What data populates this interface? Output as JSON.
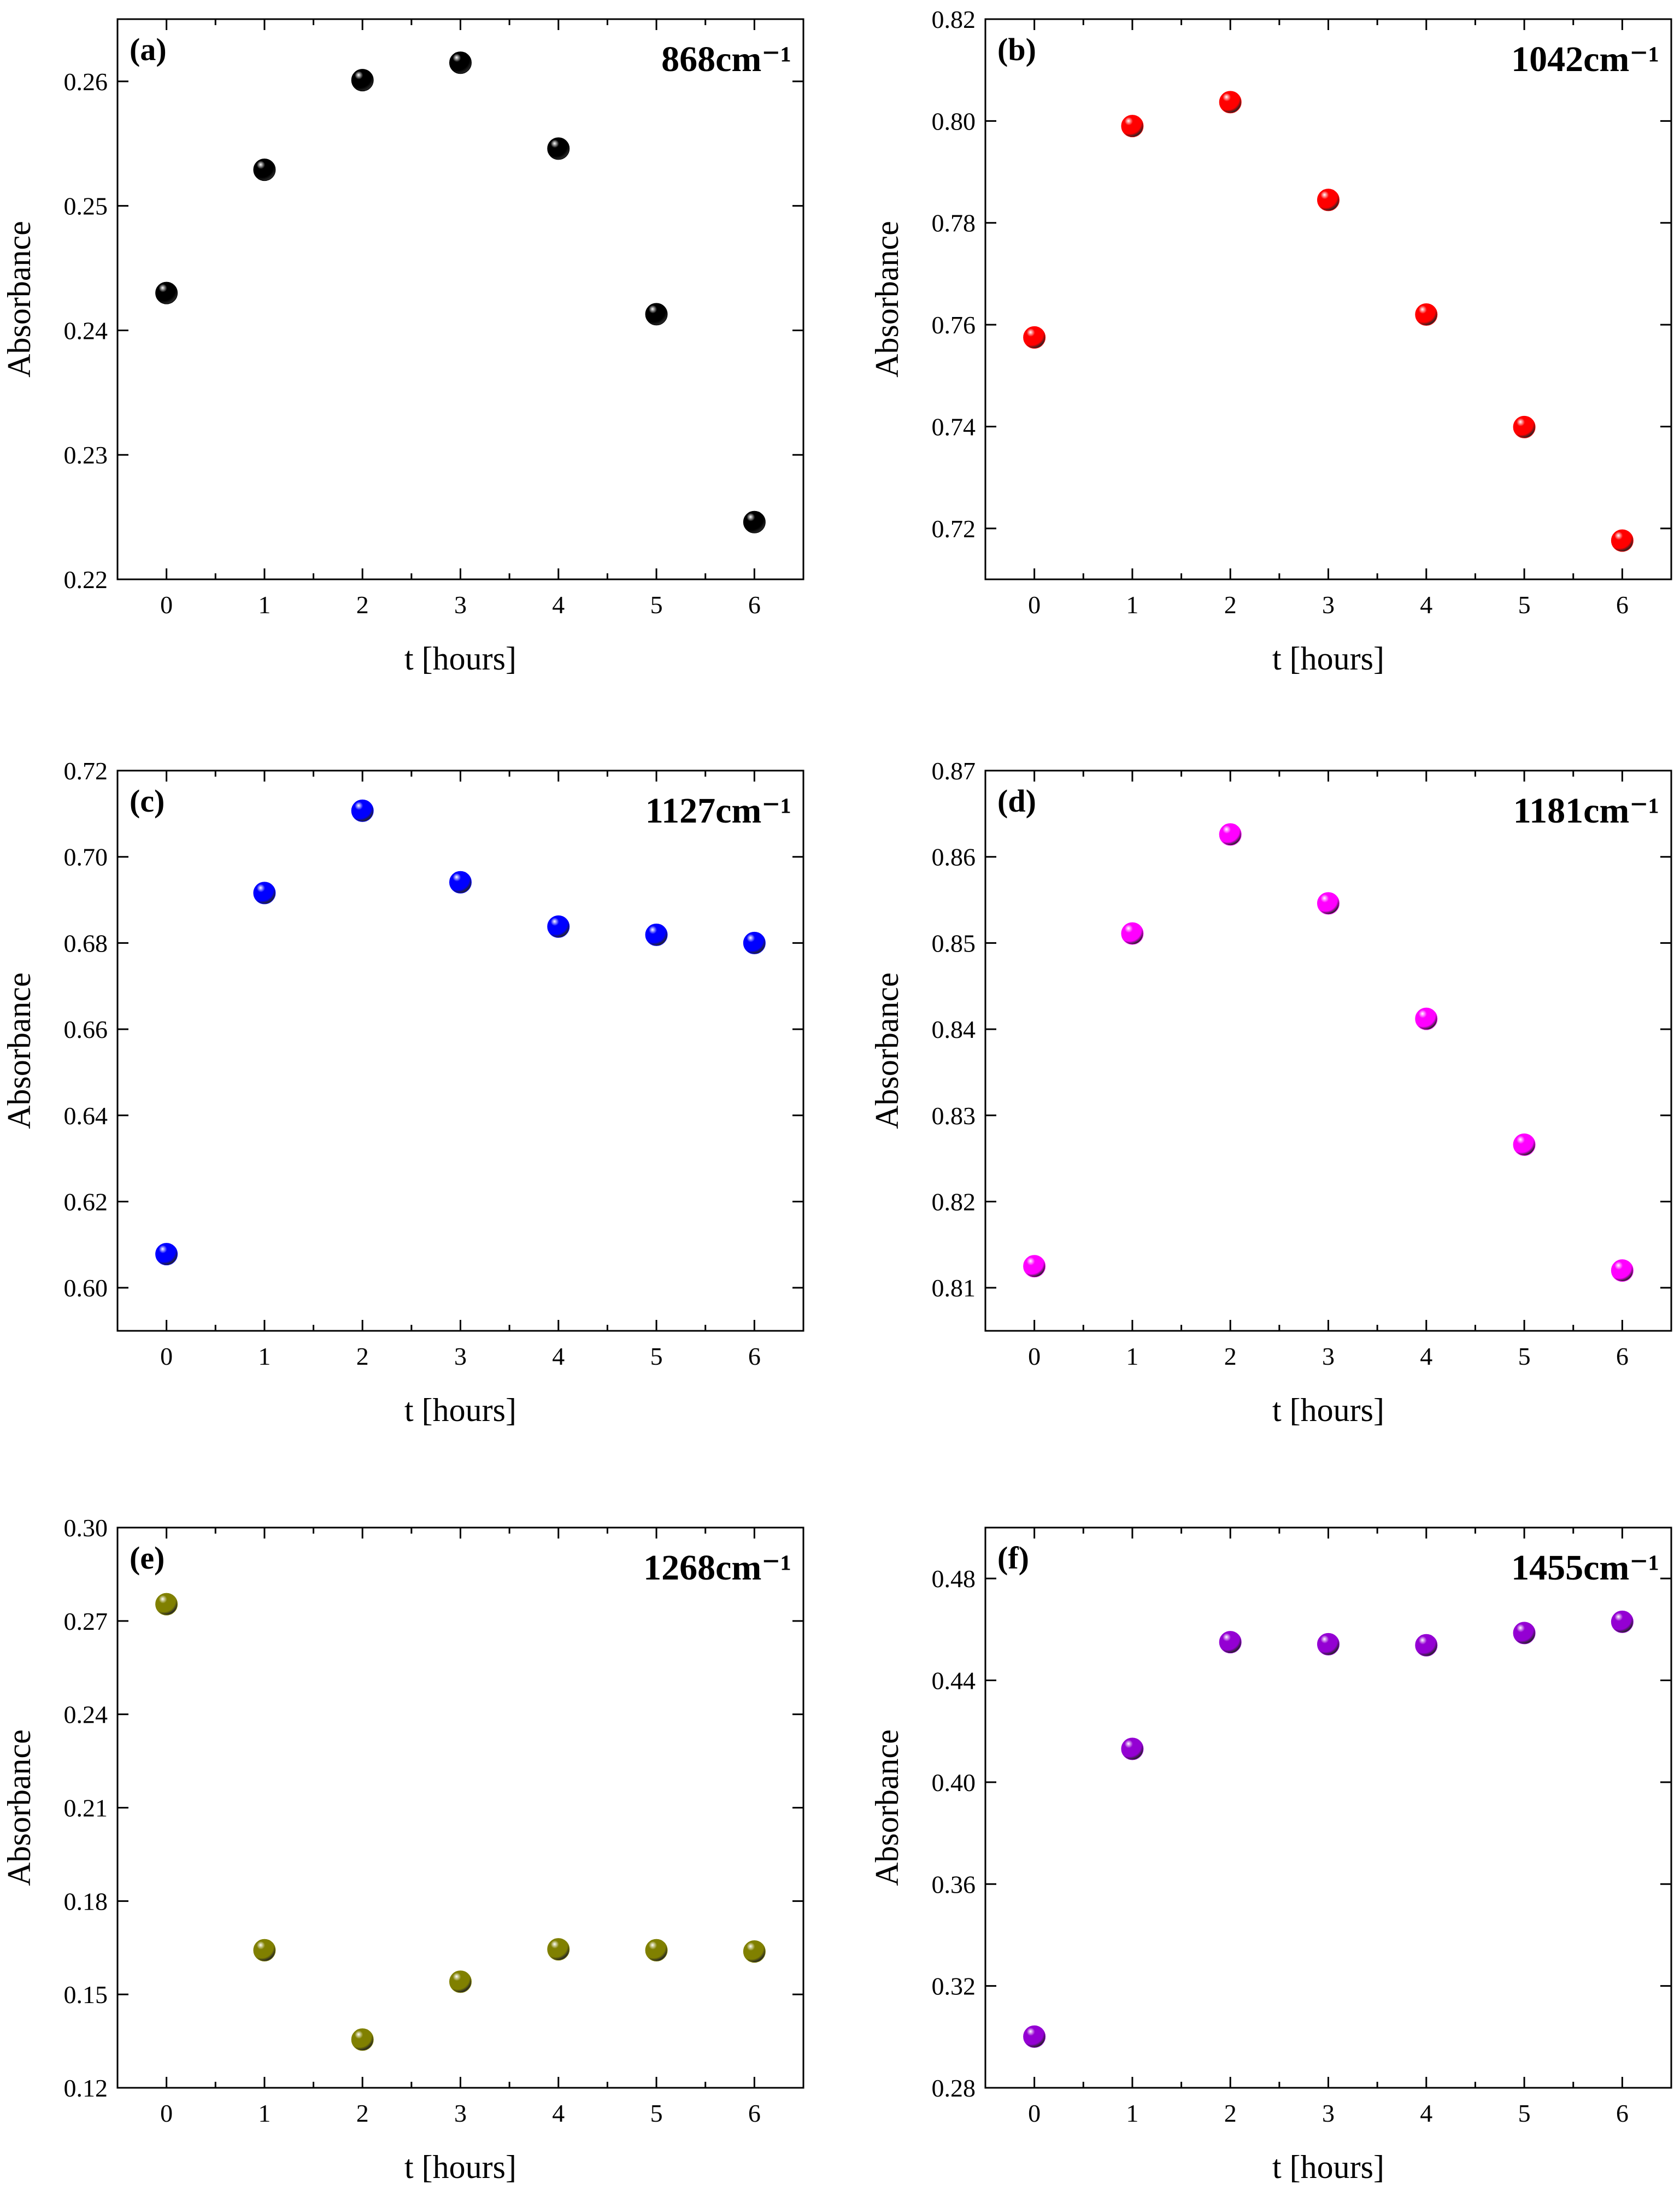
{
  "chart_data": [
    {
      "type": "scatter",
      "panel": "(a)",
      "wavenumber": "868cm⁻¹",
      "xlabel": "t [hours]",
      "ylabel": "Absorbance",
      "x": [
        0,
        1,
        2,
        3,
        4,
        5,
        6
      ],
      "y": [
        0.243,
        0.2529,
        0.2601,
        0.2615,
        0.2546,
        0.2413,
        0.2246
      ],
      "xlim": [
        -0.5,
        6.5
      ],
      "ylim": [
        0.22,
        0.265
      ],
      "xticks": [
        "0",
        "1",
        "2",
        "3",
        "4",
        "5",
        "6"
      ],
      "yticks": [
        0.22,
        0.23,
        0.24,
        0.25,
        0.26
      ],
      "ytick_labels": [
        "0.22",
        "0.23",
        "0.24",
        "0.25",
        "0.26"
      ],
      "color": "#000000"
    },
    {
      "type": "scatter",
      "panel": "(b)",
      "wavenumber": "1042cm⁻¹",
      "xlabel": "t [hours]",
      "ylabel": "Absorbance",
      "x": [
        0,
        1,
        2,
        3,
        4,
        5,
        6
      ],
      "y": [
        0.7575,
        0.799,
        0.8037,
        0.7845,
        0.762,
        0.7399,
        0.7176
      ],
      "xlim": [
        -0.5,
        6.5
      ],
      "ylim": [
        0.71,
        0.82
      ],
      "xticks": [
        "0",
        "1",
        "2",
        "3",
        "4",
        "5",
        "6"
      ],
      "yticks": [
        0.72,
        0.74,
        0.76,
        0.78,
        0.8,
        0.82
      ],
      "ytick_labels": [
        "0.72",
        "0.74",
        "0.76",
        "0.78",
        "0.80",
        "0.82"
      ],
      "color": "#ff0000"
    },
    {
      "type": "scatter",
      "panel": "(c)",
      "wavenumber": "1127cm⁻¹",
      "xlabel": "t [hours]",
      "ylabel": "Absorbance",
      "x": [
        0,
        1,
        2,
        3,
        4,
        5,
        6
      ],
      "y": [
        0.6078,
        0.6916,
        0.7107,
        0.6941,
        0.6838,
        0.6819,
        0.68
      ],
      "xlim": [
        -0.5,
        6.5
      ],
      "ylim": [
        0.59,
        0.72
      ],
      "xticks": [
        "0",
        "1",
        "2",
        "3",
        "4",
        "5",
        "6"
      ],
      "yticks": [
        0.6,
        0.62,
        0.64,
        0.66,
        0.68,
        0.7,
        0.72
      ],
      "ytick_labels": [
        "0.60",
        "0.62",
        "0.64",
        "0.66",
        "0.68",
        "0.70",
        "0.72"
      ],
      "color": "#0000ff"
    },
    {
      "type": "scatter",
      "panel": "(d)",
      "wavenumber": "1181cm⁻¹",
      "xlabel": "t [hours]",
      "ylabel": "Absorbance",
      "x": [
        0,
        1,
        2,
        3,
        4,
        5,
        6
      ],
      "y": [
        0.8125,
        0.8511,
        0.8626,
        0.8546,
        0.8412,
        0.8266,
        0.812
      ],
      "xlim": [
        -0.5,
        6.5
      ],
      "ylim": [
        0.805,
        0.87
      ],
      "xticks": [
        "0",
        "1",
        "2",
        "3",
        "4",
        "5",
        "6"
      ],
      "yticks": [
        0.81,
        0.82,
        0.83,
        0.84,
        0.85,
        0.86,
        0.87
      ],
      "ytick_labels": [
        "0.81",
        "0.82",
        "0.83",
        "0.84",
        "0.85",
        "0.86",
        "0.87"
      ],
      "color": "#ff00ff"
    },
    {
      "type": "scatter",
      "panel": "(e)",
      "wavenumber": "1268cm⁻¹",
      "xlabel": "t [hours]",
      "ylabel": "Absorbance",
      "x": [
        0,
        1,
        2,
        3,
        4,
        5,
        6
      ],
      "y": [
        0.2754,
        0.1642,
        0.1355,
        0.1541,
        0.1645,
        0.1642,
        0.1638
      ],
      "xlim": [
        -0.5,
        6.5
      ],
      "ylim": [
        0.12,
        0.3
      ],
      "xticks": [
        "0",
        "1",
        "2",
        "3",
        "4",
        "5",
        "6"
      ],
      "yticks": [
        0.12,
        0.15,
        0.18,
        0.21,
        0.24,
        0.27,
        0.3
      ],
      "ytick_labels": [
        "0.12",
        "0.15",
        "0.18",
        "0.21",
        "0.24",
        "0.27",
        "0.30"
      ],
      "color": "#808000"
    },
    {
      "type": "scatter",
      "panel": "(f)",
      "wavenumber": "1455cm⁻¹",
      "xlabel": "t [hours]",
      "ylabel": "Absorbance",
      "x": [
        0,
        1,
        2,
        3,
        4,
        5,
        6
      ],
      "y": [
        0.3001,
        0.4131,
        0.455,
        0.4542,
        0.4538,
        0.4586,
        0.463
      ],
      "xlim": [
        -0.5,
        6.5
      ],
      "ylim": [
        0.28,
        0.5
      ],
      "xticks": [
        "0",
        "1",
        "2",
        "3",
        "4",
        "5",
        "6"
      ],
      "yticks": [
        0.28,
        0.32,
        0.36,
        0.4,
        0.44,
        0.48
      ],
      "ytick_labels": [
        "0.28",
        "0.32",
        "0.36",
        "0.40",
        "0.44",
        "0.48"
      ],
      "color": "#9400d3"
    }
  ]
}
